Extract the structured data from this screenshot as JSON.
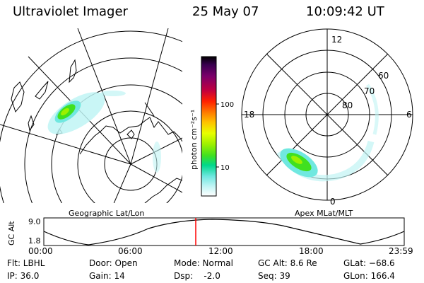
{
  "header": {
    "instrument": "Ultraviolet Imager",
    "date": "25 May 07",
    "time": "10:09:42 UT"
  },
  "left_panel": {
    "caption": "Geographic Lat/Lon"
  },
  "right_panel": {
    "caption": "Apex MLat/MLT",
    "mlt_labels": {
      "top": "12",
      "left": "18",
      "right": "6",
      "bottom": "0"
    },
    "lat_labels": [
      "60",
      "70",
      "80"
    ]
  },
  "colorbar": {
    "unit_label": "photon cm⁻²s⁻¹",
    "tick_labels": [
      "100",
      "10"
    ],
    "colors": [
      "#000000",
      "#3a0050",
      "#7a006a",
      "#c00040",
      "#ff2000",
      "#ff7a00",
      "#ffc000",
      "#e8ff00",
      "#9cf000",
      "#40e020",
      "#00d88c",
      "#70e8e0",
      "#c0f4f4",
      "#ffffff"
    ]
  },
  "timeline": {
    "y_axis_label": "GC Alt",
    "y_ticks": [
      "9.0",
      "1.8"
    ],
    "x_ticks": [
      "00:00",
      "06:00",
      "12:00",
      "18:00",
      "23:59"
    ],
    "marker_color": "#ff0000"
  },
  "status": {
    "filter": "Flt: LBHL",
    "ip": "IP: 36.0",
    "door": "Door: Open",
    "gain": "Gain: 14",
    "mode": "Mode: Normal",
    "dsp": "Dsp:    -2.0",
    "gc_alt": "GC Alt: 8.6 Re",
    "seq": "Seq: 39",
    "glat": "GLat: −68.6",
    "glon": "GLon: 166.4"
  }
}
